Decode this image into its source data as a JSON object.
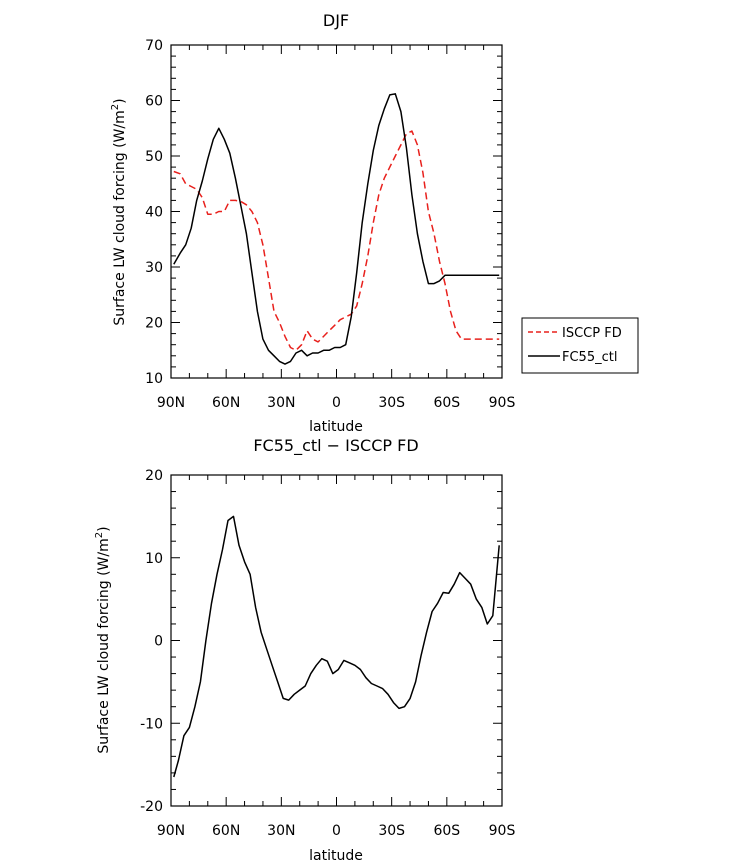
{
  "chart_data": [
    {
      "type": "line",
      "title": "DJF",
      "xlabel": "latitude",
      "ylabel": "Surface LW cloud forcing (W/m",
      "ylabel_sup": "2",
      "ylabel_close": ")",
      "xlim": [
        -90,
        90
      ],
      "ylim": [
        10,
        70
      ],
      "x_ticks": [
        {
          "value": -90,
          "label": "90N"
        },
        {
          "value": -60,
          "label": "60N"
        },
        {
          "value": -30,
          "label": "30N"
        },
        {
          "value": 0,
          "label": "0"
        },
        {
          "value": 30,
          "label": "30S"
        },
        {
          "value": 60,
          "label": "60S"
        },
        {
          "value": 90,
          "label": "90S"
        }
      ],
      "y_ticks": [
        10,
        20,
        30,
        40,
        50,
        60,
        70
      ],
      "legend_position": "right",
      "series": [
        {
          "name": "ISCCP FD",
          "color": "#e8201c",
          "dash": "dashed",
          "x": [
            -88.5,
            -85,
            -82,
            -79,
            -76,
            -73,
            -70,
            -67,
            -64,
            -61,
            -58,
            -55,
            -52,
            -49,
            -46,
            -43,
            -40,
            -37,
            -34,
            -31,
            -28,
            -25,
            -22,
            -19,
            -16,
            -13,
            -10,
            -7,
            -4,
            -1,
            2,
            5,
            8,
            11,
            14,
            17,
            20,
            23,
            26,
            29,
            32,
            35,
            38,
            41,
            44,
            47,
            50,
            53,
            56,
            59,
            62,
            65,
            68,
            71,
            74,
            77,
            80,
            83,
            86,
            88.5
          ],
          "y": [
            47.2,
            46.8,
            45,
            44.5,
            44,
            42.5,
            39.5,
            39.5,
            40,
            40,
            42,
            42,
            41.8,
            41.2,
            40,
            38,
            34,
            28,
            22,
            20,
            17.5,
            15.5,
            15,
            16,
            18.5,
            17,
            16.5,
            17.5,
            18.5,
            19.5,
            20.5,
            21,
            21.5,
            23,
            27,
            32,
            38,
            43,
            46,
            48,
            50,
            52,
            54,
            54.5,
            52,
            47,
            40,
            36,
            31,
            27,
            22,
            18.5,
            17,
            17,
            17,
            17,
            17,
            17,
            17,
            17
          ]
        },
        {
          "name": "FC55_ctl",
          "color": "#000000",
          "dash": "solid",
          "x": [
            -88.5,
            -85,
            -82,
            -79,
            -76,
            -73,
            -70,
            -67,
            -64,
            -61,
            -58,
            -55,
            -52,
            -49,
            -46,
            -43,
            -40,
            -37,
            -34,
            -31,
            -28,
            -25,
            -22,
            -19,
            -16,
            -13,
            -10,
            -7,
            -4,
            -1,
            2,
            5,
            8,
            11,
            14,
            17,
            20,
            23,
            26,
            29,
            32,
            35,
            38,
            41,
            44,
            47,
            50,
            53,
            56,
            59,
            62,
            65,
            68,
            71,
            74,
            77,
            80,
            83,
            86,
            88.5
          ],
          "y": [
            30.5,
            32.5,
            34,
            37,
            42,
            45.5,
            49.5,
            53,
            55,
            53,
            50.5,
            46,
            41,
            36,
            29,
            22,
            17,
            15,
            14,
            13,
            12.5,
            13,
            14.5,
            15,
            14,
            14.5,
            14.5,
            15,
            15,
            15.5,
            15.5,
            16,
            21,
            29,
            38,
            45,
            51,
            55.5,
            58.5,
            61,
            61.2,
            58,
            51.5,
            43,
            36,
            31,
            27,
            27,
            27.5,
            28.5,
            28.5,
            28.5,
            28.5,
            28.5,
            28.5,
            28.5,
            28.5,
            28.5,
            28.5,
            28.5
          ]
        }
      ]
    },
    {
      "type": "line",
      "title": "FC55_ctl − ISCCP FD",
      "xlabel": "latitude",
      "ylabel": "Surface LW cloud forcing (W/m",
      "ylabel_sup": "2",
      "ylabel_close": ")",
      "xlim": [
        -90,
        90
      ],
      "ylim": [
        -20,
        20
      ],
      "x_ticks": [
        {
          "value": -90,
          "label": "90N"
        },
        {
          "value": -60,
          "label": "60N"
        },
        {
          "value": -30,
          "label": "30N"
        },
        {
          "value": 0,
          "label": "0"
        },
        {
          "value": 30,
          "label": "30S"
        },
        {
          "value": 60,
          "label": "60S"
        },
        {
          "value": 90,
          "label": "90S"
        }
      ],
      "y_ticks": [
        -20,
        -10,
        0,
        10,
        20
      ],
      "series": [
        {
          "color": "#000000",
          "dash": "solid",
          "x": [
            -88.5,
            -86,
            -83,
            -80,
            -77,
            -74,
            -71,
            -68,
            -65,
            -62,
            -59,
            -56,
            -53,
            -50,
            -47,
            -44,
            -41,
            -38,
            -35,
            -32,
            -29,
            -26,
            -23,
            -20,
            -17,
            -14,
            -11,
            -8,
            -5,
            -2,
            1,
            4,
            7,
            10,
            13,
            16,
            19,
            22,
            25,
            28,
            31,
            34,
            37,
            40,
            43,
            46,
            49,
            52,
            55,
            58,
            61,
            64,
            67,
            70,
            73,
            76,
            79,
            82,
            85,
            88.5
          ],
          "y": [
            -16.5,
            -14.5,
            -11.5,
            -10.5,
            -8,
            -5,
            0,
            4.5,
            8,
            11,
            14.5,
            15,
            11.5,
            9.5,
            8,
            4,
            1,
            -1,
            -3,
            -5,
            -7,
            -7.2,
            -6.5,
            -6,
            -5.5,
            -4,
            -3,
            -2.2,
            -2.5,
            -4,
            -3.5,
            -2.4,
            -2.7,
            -3,
            -3.5,
            -4.5,
            -5.2,
            -5.5,
            -5.8,
            -6.5,
            -7.5,
            -8.2,
            -8,
            -7,
            -5,
            -1.8,
            1,
            3.5,
            4.5,
            5.8,
            5.7,
            6.8,
            8.2,
            7.5,
            6.8,
            5,
            4,
            2,
            3,
            11.5
          ]
        }
      ]
    }
  ]
}
